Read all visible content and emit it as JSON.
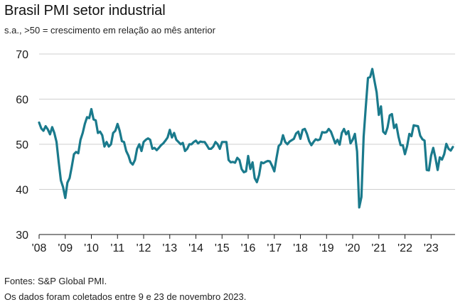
{
  "title": "Brasil PMI setor industrial",
  "subtitle": "s.a., >50 = crescimento em relação ao mês anterior",
  "footnotes": [
    "Fontes: S&P Global PMI.",
    "Os dados foram coletados entre 9 e 23 de novembro 2023."
  ],
  "chart_data": {
    "type": "line",
    "title": "Brasil PMI setor industrial",
    "subtitle": "s.a., >50 = crescimento em relação ao mês anterior",
    "ylim": [
      30,
      70
    ],
    "yticks": [
      30,
      40,
      50,
      60,
      70
    ],
    "xlim": [
      2008.0,
      2023.917
    ],
    "xtick_labels": [
      "'08",
      "'09",
      "'10",
      "'11",
      "'12",
      "'13",
      "'14",
      "'15",
      "'16",
      "'17",
      "'18",
      "'19",
      "'20",
      "'21",
      "'22",
      "'23"
    ],
    "grid": "horizontal",
    "line_color": "#1a7a8c",
    "series": [
      {
        "points": [
          [
            2008.0,
            54.8
          ],
          [
            2008.083,
            53.5
          ],
          [
            2008.167,
            53.0
          ],
          [
            2008.25,
            54.0
          ],
          [
            2008.333,
            53.3
          ],
          [
            2008.417,
            52.2
          ],
          [
            2008.5,
            53.8
          ],
          [
            2008.583,
            52.5
          ],
          [
            2008.667,
            50.5
          ],
          [
            2008.75,
            46.0
          ],
          [
            2008.833,
            42.0
          ],
          [
            2008.917,
            40.5
          ],
          [
            2009.0,
            38.1
          ],
          [
            2009.083,
            41.5
          ],
          [
            2009.167,
            42.5
          ],
          [
            2009.25,
            45.0
          ],
          [
            2009.333,
            47.8
          ],
          [
            2009.417,
            48.3
          ],
          [
            2009.5,
            48.0
          ],
          [
            2009.583,
            51.0
          ],
          [
            2009.667,
            52.5
          ],
          [
            2009.75,
            54.5
          ],
          [
            2009.833,
            56.0
          ],
          [
            2009.917,
            55.8
          ],
          [
            2010.0,
            57.8
          ],
          [
            2010.083,
            55.5
          ],
          [
            2010.167,
            55.3
          ],
          [
            2010.25,
            52.5
          ],
          [
            2010.333,
            52.8
          ],
          [
            2010.417,
            52.0
          ],
          [
            2010.5,
            49.5
          ],
          [
            2010.583,
            50.5
          ],
          [
            2010.667,
            49.5
          ],
          [
            2010.75,
            50.0
          ],
          [
            2010.833,
            52.5
          ],
          [
            2010.917,
            53.0
          ],
          [
            2011.0,
            54.5
          ],
          [
            2011.083,
            53.0
          ],
          [
            2011.167,
            50.7
          ],
          [
            2011.25,
            50.5
          ],
          [
            2011.333,
            48.5
          ],
          [
            2011.417,
            47.5
          ],
          [
            2011.5,
            46.0
          ],
          [
            2011.583,
            45.5
          ],
          [
            2011.667,
            46.5
          ],
          [
            2011.75,
            49.0
          ],
          [
            2011.833,
            50.0
          ],
          [
            2011.917,
            48.5
          ],
          [
            2012.0,
            50.5
          ],
          [
            2012.083,
            51.0
          ],
          [
            2012.167,
            51.3
          ],
          [
            2012.25,
            51.0
          ],
          [
            2012.333,
            49.0
          ],
          [
            2012.417,
            49.2
          ],
          [
            2012.5,
            48.7
          ],
          [
            2012.583,
            49.2
          ],
          [
            2012.667,
            49.8
          ],
          [
            2012.75,
            50.2
          ],
          [
            2012.833,
            50.8
          ],
          [
            2012.917,
            51.5
          ],
          [
            2013.0,
            53.2
          ],
          [
            2013.083,
            51.5
          ],
          [
            2013.167,
            52.5
          ],
          [
            2013.25,
            51.0
          ],
          [
            2013.333,
            50.5
          ],
          [
            2013.417,
            50.0
          ],
          [
            2013.5,
            50.3
          ],
          [
            2013.583,
            48.5
          ],
          [
            2013.667,
            49.0
          ],
          [
            2013.75,
            50.0
          ],
          [
            2013.833,
            50.0
          ],
          [
            2013.917,
            50.5
          ],
          [
            2014.0,
            50.8
          ],
          [
            2014.083,
            50.2
          ],
          [
            2014.167,
            50.6
          ],
          [
            2014.25,
            50.5
          ],
          [
            2014.333,
            50.5
          ],
          [
            2014.417,
            49.8
          ],
          [
            2014.5,
            49.0
          ],
          [
            2014.583,
            49.0
          ],
          [
            2014.667,
            49.5
          ],
          [
            2014.75,
            50.5
          ],
          [
            2014.833,
            50.0
          ],
          [
            2014.917,
            49.0
          ],
          [
            2015.0,
            50.5
          ],
          [
            2015.083,
            50.5
          ],
          [
            2015.167,
            50.5
          ],
          [
            2015.25,
            46.5
          ],
          [
            2015.333,
            46.0
          ],
          [
            2015.417,
            46.1
          ],
          [
            2015.5,
            45.9
          ],
          [
            2015.583,
            47.0
          ],
          [
            2015.667,
            46.5
          ],
          [
            2015.75,
            44.5
          ],
          [
            2015.833,
            43.8
          ],
          [
            2015.917,
            44.0
          ],
          [
            2016.0,
            47.4
          ],
          [
            2016.083,
            44.5
          ],
          [
            2016.167,
            46.0
          ],
          [
            2016.25,
            42.5
          ],
          [
            2016.333,
            41.6
          ],
          [
            2016.417,
            43.2
          ],
          [
            2016.5,
            46.0
          ],
          [
            2016.583,
            45.8
          ],
          [
            2016.667,
            46.1
          ],
          [
            2016.75,
            46.3
          ],
          [
            2016.833,
            46.2
          ],
          [
            2016.917,
            45.2
          ],
          [
            2017.0,
            44.0
          ],
          [
            2017.083,
            46.9
          ],
          [
            2017.167,
            49.6
          ],
          [
            2017.25,
            50.1
          ],
          [
            2017.333,
            52.0
          ],
          [
            2017.417,
            50.5
          ],
          [
            2017.5,
            50.0
          ],
          [
            2017.583,
            50.6
          ],
          [
            2017.667,
            50.9
          ],
          [
            2017.75,
            51.2
          ],
          [
            2017.833,
            52.4
          ],
          [
            2017.917,
            52.8
          ],
          [
            2018.0,
            51.2
          ],
          [
            2018.083,
            53.2
          ],
          [
            2018.167,
            53.4
          ],
          [
            2018.25,
            52.3
          ],
          [
            2018.333,
            50.7
          ],
          [
            2018.417,
            49.8
          ],
          [
            2018.5,
            50.5
          ],
          [
            2018.583,
            51.1
          ],
          [
            2018.667,
            50.9
          ],
          [
            2018.75,
            51.1
          ],
          [
            2018.833,
            52.7
          ],
          [
            2018.917,
            52.6
          ],
          [
            2019.0,
            52.7
          ],
          [
            2019.083,
            53.4
          ],
          [
            2019.167,
            52.8
          ],
          [
            2019.25,
            51.5
          ],
          [
            2019.333,
            50.2
          ],
          [
            2019.417,
            51.0
          ],
          [
            2019.5,
            49.9
          ],
          [
            2019.583,
            52.5
          ],
          [
            2019.667,
            53.4
          ],
          [
            2019.75,
            52.2
          ],
          [
            2019.833,
            52.9
          ],
          [
            2019.917,
            50.2
          ],
          [
            2020.0,
            51.0
          ],
          [
            2020.083,
            52.3
          ],
          [
            2020.167,
            48.4
          ],
          [
            2020.25,
            36.0
          ],
          [
            2020.333,
            38.3
          ],
          [
            2020.417,
            51.6
          ],
          [
            2020.5,
            58.2
          ],
          [
            2020.583,
            64.7
          ],
          [
            2020.667,
            64.9
          ],
          [
            2020.75,
            66.7
          ],
          [
            2020.833,
            64.0
          ],
          [
            2020.917,
            61.5
          ],
          [
            2021.0,
            56.5
          ],
          [
            2021.083,
            58.4
          ],
          [
            2021.167,
            52.8
          ],
          [
            2021.25,
            52.3
          ],
          [
            2021.333,
            53.7
          ],
          [
            2021.417,
            56.4
          ],
          [
            2021.5,
            56.7
          ],
          [
            2021.583,
            53.6
          ],
          [
            2021.667,
            54.4
          ],
          [
            2021.75,
            51.7
          ],
          [
            2021.833,
            49.8
          ],
          [
            2021.917,
            49.8
          ],
          [
            2022.0,
            47.8
          ],
          [
            2022.083,
            49.6
          ],
          [
            2022.167,
            52.3
          ],
          [
            2022.25,
            51.8
          ],
          [
            2022.333,
            54.2
          ],
          [
            2022.417,
            54.1
          ],
          [
            2022.5,
            54.0
          ],
          [
            2022.583,
            51.9
          ],
          [
            2022.667,
            51.1
          ],
          [
            2022.75,
            50.8
          ],
          [
            2022.833,
            44.3
          ],
          [
            2022.917,
            44.2
          ],
          [
            2023.0,
            47.5
          ],
          [
            2023.083,
            49.2
          ],
          [
            2023.167,
            47.0
          ],
          [
            2023.25,
            44.3
          ],
          [
            2023.333,
            47.1
          ],
          [
            2023.417,
            46.6
          ],
          [
            2023.5,
            47.8
          ],
          [
            2023.583,
            50.1
          ],
          [
            2023.667,
            49.0
          ],
          [
            2023.75,
            48.6
          ],
          [
            2023.833,
            49.4
          ]
        ]
      }
    ]
  }
}
